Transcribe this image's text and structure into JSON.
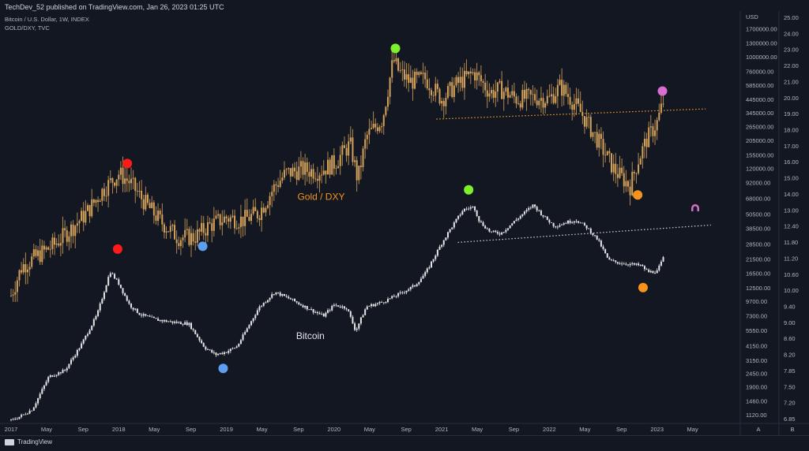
{
  "header": {
    "published": "TechDev_52 published on TradingView.com, Jan 26, 2023 01:25 UTC",
    "symbol_main": "Bitcoin / U.S. Dollar, 1W, INDEX",
    "symbol_overlay": "GOLD/DXY, TVC"
  },
  "footer": {
    "brand": "TradingView"
  },
  "colors": {
    "background": "#131722",
    "gold_series": "#d4a25a",
    "btc_series": "#e6e6e6",
    "gold_trend": "#f0a030",
    "btc_trend": "#d1d4dc",
    "red": "#ff1a1a",
    "green": "#7cf02a",
    "blue": "#5c9ef0",
    "orange": "#f7931a",
    "violet": "#d86fd0"
  },
  "chart_data": {
    "type": "line",
    "x_axis": {
      "ticks": [
        "2017",
        "May",
        "Sep",
        "2018",
        "May",
        "Sep",
        "2019",
        "May",
        "Sep",
        "2020",
        "May",
        "Sep",
        "2021",
        "May",
        "Sep",
        "2022",
        "May",
        "Sep",
        "2023",
        "May"
      ],
      "range": [
        2017.0,
        2023.45
      ]
    },
    "left_axis": {
      "unit": "USD",
      "scale": "log",
      "ticks": [
        "1700000.00",
        "1300000.00",
        "1000000.00",
        "760000.00",
        "585000.00",
        "445000.00",
        "345000.00",
        "265000.00",
        "205000.00",
        "155000.00",
        "120000.00",
        "92000.00",
        "68000.00",
        "50500.00",
        "38500.00",
        "28500.00",
        "21500.00",
        "16500.00",
        "12500.00",
        "9700.00",
        "7300.00",
        "5550.00",
        "4150.00",
        "3150.00",
        "2450.00",
        "1900.00",
        "1460.00",
        "1120.00"
      ]
    },
    "right_axis": {
      "ticks": [
        "25.00",
        "24.00",
        "23.00",
        "22.00",
        "21.00",
        "20.00",
        "19.00",
        "18.00",
        "17.00",
        "16.00",
        "15.00",
        "14.00",
        "13.00",
        "12.40",
        "11.80",
        "11.20",
        "10.60",
        "10.00",
        "9.40",
        "9.00",
        "8.60",
        "8.20",
        "7.85",
        "7.50",
        "7.20",
        "6.85"
      ]
    },
    "series": [
      {
        "name": "Gold / DXY",
        "x": [
          2017.0,
          2017.1,
          2017.25,
          2017.4,
          2017.55,
          2017.7,
          2017.85,
          2018.0,
          2018.1,
          2018.25,
          2018.4,
          2018.55,
          2018.7,
          2018.85,
          2019.0,
          2019.15,
          2019.3,
          2019.45,
          2019.55,
          2019.7,
          2019.85,
          2020.0,
          2020.15,
          2020.22,
          2020.3,
          2020.45,
          2020.55,
          2020.6,
          2020.7,
          2020.85,
          2021.0,
          2021.15,
          2021.3,
          2021.45,
          2021.55,
          2021.7,
          2021.85,
          2022.0,
          2022.1,
          2022.2,
          2022.3,
          2022.45,
          2022.6,
          2022.75,
          2022.82,
          2022.9,
          2023.0,
          2023.07
        ],
        "values": [
          10.2,
          11.2,
          11.6,
          12.0,
          12.6,
          13.3,
          14.3,
          15.1,
          14.7,
          13.7,
          12.9,
          12.3,
          12.3,
          12.8,
          13.1,
          13.0,
          13.3,
          14.5,
          15.1,
          15.3,
          15.2,
          15.6,
          16.6,
          14.8,
          17.0,
          18.0,
          21.8,
          21.0,
          20.3,
          20.5,
          19.2,
          20.2,
          20.9,
          19.6,
          19.8,
          19.2,
          19.3,
          19.2,
          20.0,
          19.2,
          18.3,
          16.8,
          15.3,
          14.5,
          15.7,
          16.8,
          17.8,
          19.3
        ]
      },
      {
        "name": "Bitcoin",
        "x": [
          2017.0,
          2017.1,
          2017.2,
          2017.35,
          2017.5,
          2017.65,
          2017.8,
          2017.92,
          2018.0,
          2018.1,
          2018.2,
          2018.35,
          2018.5,
          2018.65,
          2018.8,
          2018.9,
          2019.0,
          2019.1,
          2019.3,
          2019.45,
          2019.6,
          2019.75,
          2019.9,
          2020.0,
          2020.12,
          2020.2,
          2020.3,
          2020.45,
          2020.6,
          2020.75,
          2020.85,
          2021.0,
          2021.08,
          2021.2,
          2021.3,
          2021.35,
          2021.45,
          2021.55,
          2021.7,
          2021.85,
          2021.95,
          2022.05,
          2022.15,
          2022.25,
          2022.35,
          2022.45,
          2022.55,
          2022.65,
          2022.75,
          2022.85,
          2022.92,
          2023.0,
          2023.07
        ],
        "values": [
          1000,
          1100,
          1250,
          2300,
          2600,
          4200,
          7500,
          17000,
          13500,
          9000,
          7500,
          6800,
          6500,
          6300,
          4000,
          3500,
          3700,
          4100,
          8500,
          11500,
          10000,
          8500,
          7300,
          9000,
          8500,
          5500,
          8700,
          9500,
          11000,
          13000,
          16500,
          29000,
          38000,
          55000,
          58000,
          44000,
          36000,
          35000,
          46000,
          60000,
          48000,
          40000,
          43000,
          45000,
          39000,
          31000,
          21000,
          20000,
          19500,
          19000,
          16800,
          17000,
          23000
        ]
      }
    ],
    "trendlines": [
      {
        "series": "Gold / DXY",
        "from": [
          2020.95,
          18.0
        ],
        "to": [
          2023.45,
          18.6
        ],
        "style": "dotted"
      },
      {
        "series": "Bitcoin",
        "from": [
          2021.15,
          29500
        ],
        "to": [
          2023.5,
          41000
        ],
        "style": "dotted"
      }
    ],
    "markers": [
      {
        "series": "Gold / DXY",
        "x": 2018.08,
        "value": 15.6,
        "color": "red"
      },
      {
        "series": "Gold / DXY",
        "x": 2018.78,
        "value": 11.95,
        "color": "blue"
      },
      {
        "series": "Gold / DXY",
        "x": 2020.57,
        "value": 22.6,
        "color": "green"
      },
      {
        "series": "Gold / DXY",
        "x": 2022.82,
        "value": 14.1,
        "color": "orange"
      },
      {
        "series": "Gold / DXY",
        "x": 2023.05,
        "value": 19.7,
        "color": "violet"
      },
      {
        "series": "Bitcoin",
        "x": 2017.99,
        "value": 26000,
        "color": "red"
      },
      {
        "series": "Bitcoin",
        "x": 2018.97,
        "value": 2700,
        "color": "blue"
      },
      {
        "series": "Bitcoin",
        "x": 2021.25,
        "value": 80000,
        "color": "green"
      },
      {
        "series": "Bitcoin",
        "x": 2022.87,
        "value": 12500,
        "color": "orange"
      }
    ],
    "annotations": [
      {
        "text": "Gold / DXY",
        "x": 2019.88,
        "value": 66000
      },
      {
        "text": "Bitcoin",
        "x": 2019.78,
        "value": 4700
      }
    ],
    "grid": false
  }
}
